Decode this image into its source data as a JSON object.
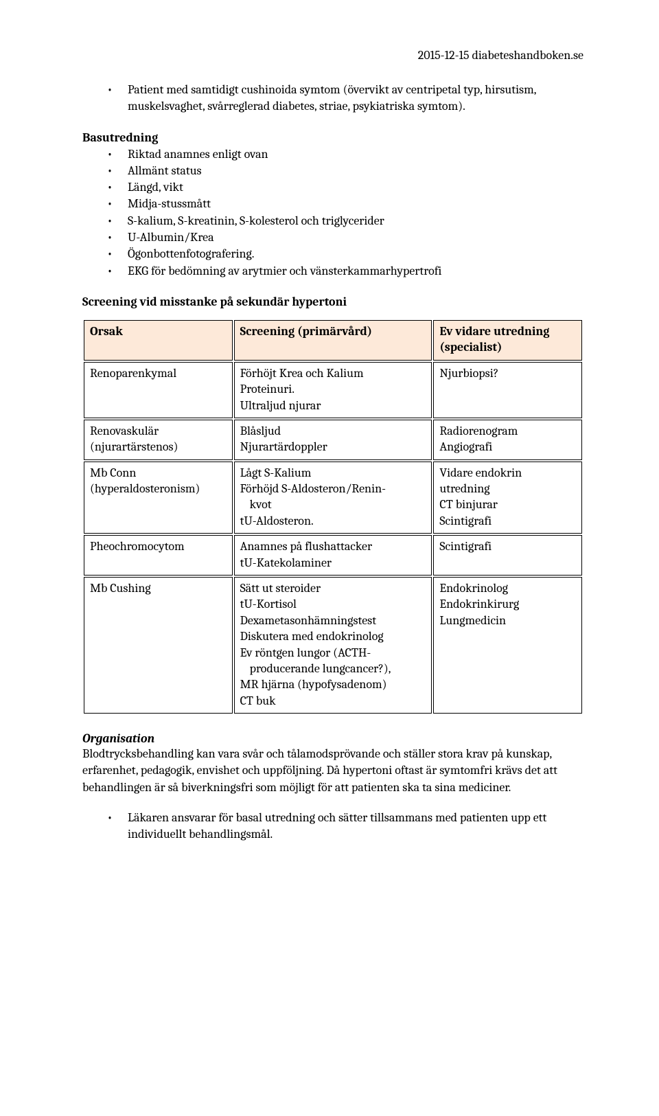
{
  "header": "2015-12-15 diabeteshandboken.se",
  "topBullet": "Patient med samtidigt cushinoida symtom (övervikt av centripetal typ, hirsutism, muskelsvaghet, svårreglerad diabetes, striae, psykiatriska symtom).",
  "basutredning": {
    "title": "Basutredning",
    "items": [
      "Riktad anamnes enligt ovan",
      "Allmänt status",
      "Längd, vikt",
      "Midja-stussmått",
      "S-kalium, S-kreatinin, S-kolesterol och triglycerider",
      "U-Albumin/Krea",
      "Ögonbottenfotografering.",
      "EKG för bedömning av arytmier och vänsterkammarhypertrofi"
    ]
  },
  "screeningTitle": "Screening vid misstanke på sekundär hypertoni",
  "table": {
    "headers": {
      "c1": "Orsak",
      "c2": "Screening (primärvård)",
      "c3": "Ev vidare utredning (specialist)"
    },
    "colors": {
      "headerBg": "#fde9d9",
      "border": "#000000"
    },
    "rows": [
      {
        "c1": [
          "Renoparenkymal"
        ],
        "c2": [
          "Förhöjt Krea och Kalium",
          "Proteinuri.",
          "Ultraljud njurar"
        ],
        "c3": [
          "Njurbiopsi?"
        ]
      },
      {
        "c1": [
          "Renovaskulär",
          "(njurartärstenos)"
        ],
        "c2": [
          "Blåsljud",
          "Njurartärdoppler"
        ],
        "c3": [
          "Radiorenogram",
          "Angiografi"
        ]
      },
      {
        "c1": [
          "Mb Conn",
          "(hyperaldosteronism)"
        ],
        "c2": [
          "Lågt S-Kalium",
          "Förhöjd S-Aldosteron/Renin-",
          "  kvot",
          "tU-Aldosteron."
        ],
        "c3": [
          "Vidare endokrin",
          "utredning",
          "CT binjurar",
          "Scintigrafi"
        ]
      },
      {
        "c1": [
          "Pheochromocytom"
        ],
        "c2": [
          "Anamnes på flushattacker",
          "tU-Katekolaminer"
        ],
        "c3": [
          "Scintigrafi"
        ]
      },
      {
        "c1": [
          "Mb Cushing"
        ],
        "c2": [
          "Sätt ut steroider",
          "tU-Kortisol",
          "Dexametasonhämningstest",
          "Diskutera med endokrinolog",
          "Ev röntgen lungor (ACTH-",
          "  producerande lungcancer?),",
          "MR hjärna (hypofysadenom)",
          "CT buk"
        ],
        "c3": [
          "Endokrinolog",
          "Endokrinkirurg",
          "Lungmedicin"
        ]
      }
    ]
  },
  "organisation": {
    "title": "Organisation",
    "para": "Blodtrycksbehandling kan vara svår och tålamodsprövande och ställer stora krav på kunskap, erfarenhet, pedagogik, envishet och uppföljning. Då hypertoni oftast är symtomfri krävs det att behandlingen är så biverkningsfri som möjligt för att patienten ska ta sina mediciner.",
    "bullet": "Läkaren ansvarar för basal utredning och sätter tillsammans med patienten upp ett individuellt behandlingsmål."
  }
}
